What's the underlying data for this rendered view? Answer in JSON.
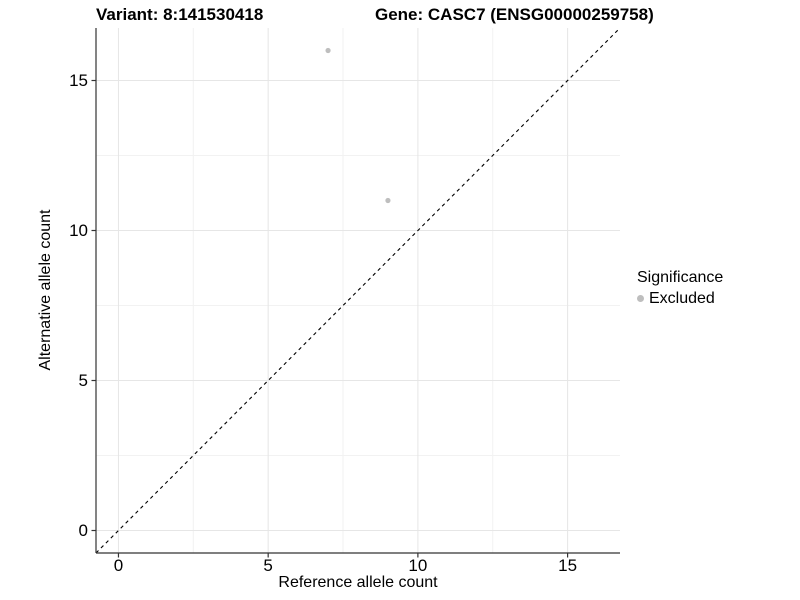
{
  "titles": {
    "variant": "Variant: 8:141530418",
    "gene": "Gene: CASC7 (ENSG00000259758)"
  },
  "chart_data": {
    "type": "scatter",
    "title_left": "Variant: 8:141530418",
    "title_right": "Gene: CASC7 (ENSG00000259758)",
    "xlabel": "Reference allele count",
    "ylabel": "Alternative allele count",
    "x_ticks": [
      0,
      5,
      10,
      15
    ],
    "y_ticks": [
      0,
      5,
      10,
      15
    ],
    "x_minor_ticks": [
      2.5,
      7.5,
      12.5
    ],
    "y_minor_ticks": [
      2.5,
      7.5,
      12.5
    ],
    "xlim": [
      -0.75,
      16.75
    ],
    "ylim": [
      -0.75,
      16.75
    ],
    "grid": true,
    "identity_line": {
      "type": "dashed",
      "equation": "y = x",
      "color": "#000000"
    },
    "series": [
      {
        "name": "Excluded",
        "color": "#bebebe",
        "points": [
          {
            "x": 7,
            "y": 16
          },
          {
            "x": 9,
            "y": 11
          }
        ]
      }
    ],
    "legend": {
      "title": "Significance",
      "position": "right",
      "entries": [
        {
          "label": "Excluded",
          "color": "#bebebe"
        }
      ]
    },
    "colors": {
      "axis_line": "#333333",
      "grid_major": "#e6e6e6",
      "grid_minor": "#f2f2f2",
      "tick_mark": "#333333",
      "text": "#000000"
    }
  }
}
